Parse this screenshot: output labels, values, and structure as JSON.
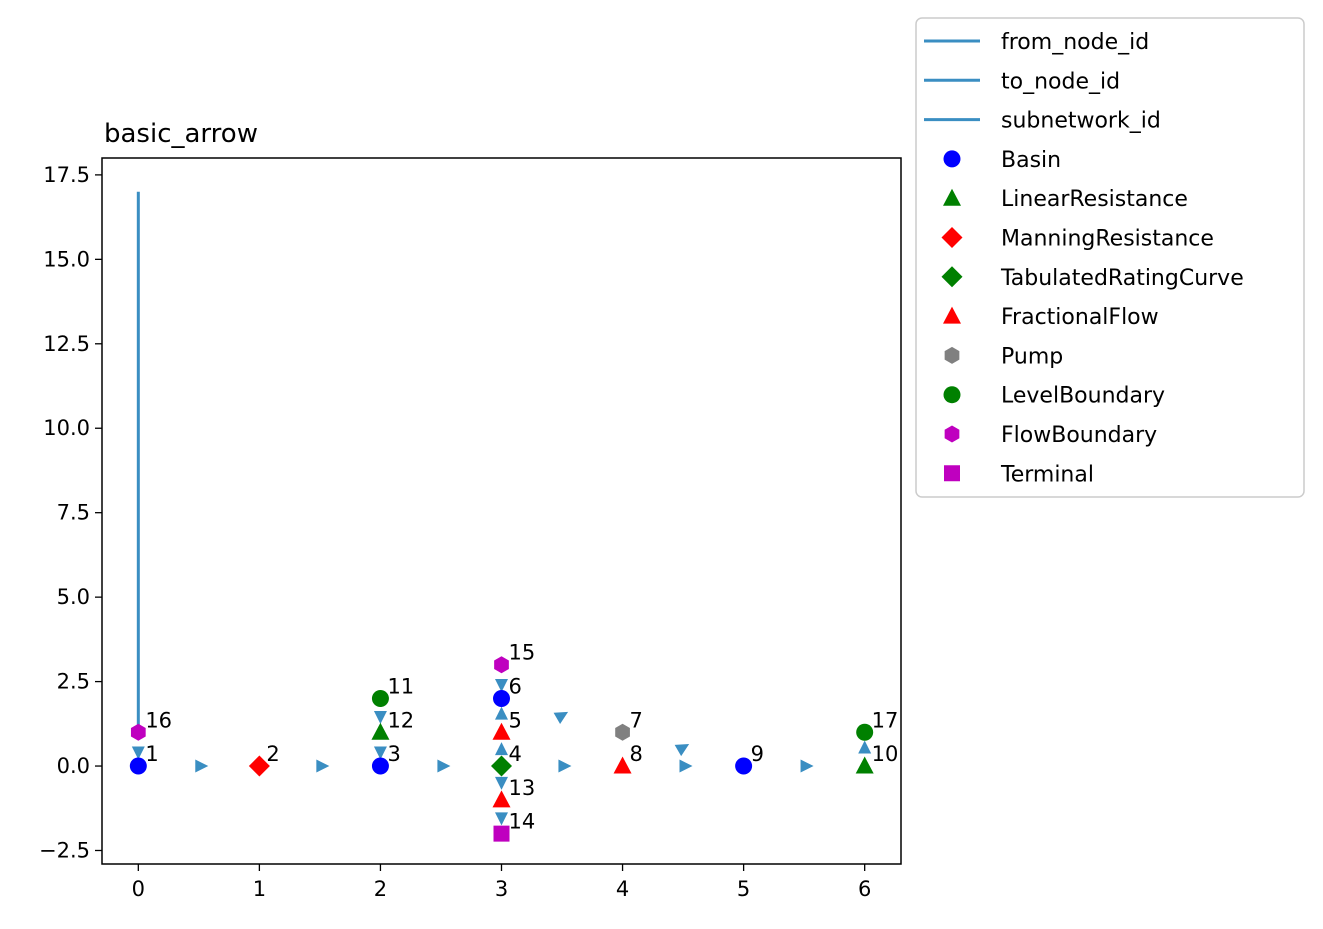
{
  "chart_data": {
    "type": "scatter",
    "title": "basic_arrow",
    "xlabel": "",
    "ylabel": "",
    "xlim": [
      -0.3,
      6.3
    ],
    "ylim": [
      -2.9,
      18.0
    ],
    "x_ticks": [
      0,
      1,
      2,
      3,
      4,
      5,
      6
    ],
    "x_tick_labels": [
      "0",
      "1",
      "2",
      "3",
      "4",
      "5",
      "6"
    ],
    "y_ticks": [
      -2.5,
      0.0,
      2.5,
      5.0,
      7.5,
      10.0,
      12.5,
      15.0,
      17.5
    ],
    "y_tick_labels": [
      "−2.5",
      "0.0",
      "2.5",
      "5.0",
      "7.5",
      "10.0",
      "12.5",
      "15.0",
      "17.5"
    ],
    "grid": false,
    "legend_position": "outside top-right",
    "edge_color": "#3a8ec2",
    "legend": [
      {
        "label": "from_node_id",
        "kind": "line",
        "color": "#3a8ec2"
      },
      {
        "label": "to_node_id",
        "kind": "line",
        "color": "#3a8ec2"
      },
      {
        "label": "subnetwork_id",
        "kind": "line",
        "color": "#3a8ec2"
      },
      {
        "label": "Basin",
        "kind": "marker",
        "shape": "circle",
        "color": "#0000ff"
      },
      {
        "label": "LinearResistance",
        "kind": "marker",
        "shape": "triangle",
        "color": "#008000"
      },
      {
        "label": "ManningResistance",
        "kind": "marker",
        "shape": "diamond",
        "color": "#ff0000"
      },
      {
        "label": "TabulatedRatingCurve",
        "kind": "marker",
        "shape": "diamond",
        "color": "#008000"
      },
      {
        "label": "FractionalFlow",
        "kind": "marker",
        "shape": "triangle",
        "color": "#ff0000"
      },
      {
        "label": "Pump",
        "kind": "marker",
        "shape": "hexagon",
        "color": "#808080"
      },
      {
        "label": "LevelBoundary",
        "kind": "marker",
        "shape": "circle",
        "color": "#008000"
      },
      {
        "label": "FlowBoundary",
        "kind": "marker",
        "shape": "hexagon",
        "color": "#bf00bf"
      },
      {
        "label": "Terminal",
        "kind": "marker",
        "shape": "square",
        "color": "#bf00bf"
      }
    ],
    "edges": [
      {
        "x": [
          0,
          0
        ],
        "y": [
          1,
          17
        ]
      }
    ],
    "arrows": [
      {
        "x": 0,
        "y": 0.4,
        "dir": "down"
      },
      {
        "x": 0.52,
        "y": 0,
        "dir": "right"
      },
      {
        "x": 1.52,
        "y": 0,
        "dir": "right"
      },
      {
        "x": 2,
        "y": 0.4,
        "dir": "down"
      },
      {
        "x": 2,
        "y": 1.45,
        "dir": "down"
      },
      {
        "x": 2.52,
        "y": 0,
        "dir": "right"
      },
      {
        "x": 3,
        "y": 0.5,
        "dir": "up"
      },
      {
        "x": 3,
        "y": 1.55,
        "dir": "up"
      },
      {
        "x": 3,
        "y": 2.4,
        "dir": "down"
      },
      {
        "x": 3,
        "y": -0.5,
        "dir": "down"
      },
      {
        "x": 3,
        "y": -1.55,
        "dir": "down"
      },
      {
        "x": 3.52,
        "y": 0,
        "dir": "right"
      },
      {
        "x": 3.5,
        "y": 1.5,
        "dir": "upright"
      },
      {
        "x": 4.52,
        "y": 0,
        "dir": "right"
      },
      {
        "x": 4.5,
        "y": 0.55,
        "dir": "upright"
      },
      {
        "x": 5.52,
        "y": 0,
        "dir": "right"
      },
      {
        "x": 6,
        "y": 0.55,
        "dir": "up"
      }
    ],
    "nodes": [
      {
        "id": "1",
        "x": 0,
        "y": 0,
        "type": "Basin"
      },
      {
        "id": "2",
        "x": 1,
        "y": 0,
        "type": "ManningResistance"
      },
      {
        "id": "3",
        "x": 2,
        "y": 0,
        "type": "Basin"
      },
      {
        "id": "4",
        "x": 3,
        "y": 0,
        "type": "TabulatedRatingCurve"
      },
      {
        "id": "5",
        "x": 3,
        "y": 1,
        "type": "FractionalFlow"
      },
      {
        "id": "6",
        "x": 3,
        "y": 2,
        "type": "Basin"
      },
      {
        "id": "7",
        "x": 4,
        "y": 1,
        "type": "Pump"
      },
      {
        "id": "8",
        "x": 4,
        "y": 0,
        "type": "FractionalFlow"
      },
      {
        "id": "9",
        "x": 5,
        "y": 0,
        "type": "Basin"
      },
      {
        "id": "10",
        "x": 6,
        "y": 0,
        "type": "LinearResistance"
      },
      {
        "id": "11",
        "x": 2,
        "y": 2,
        "type": "LevelBoundary"
      },
      {
        "id": "12",
        "x": 2,
        "y": 1,
        "type": "LinearResistance"
      },
      {
        "id": "13",
        "x": 3,
        "y": -1,
        "type": "FractionalFlow"
      },
      {
        "id": "14",
        "x": 3,
        "y": -2,
        "type": "Terminal"
      },
      {
        "id": "15",
        "x": 3,
        "y": 3,
        "type": "FlowBoundary"
      },
      {
        "id": "16",
        "x": 0,
        "y": 1,
        "type": "FlowBoundary"
      },
      {
        "id": "17",
        "x": 6,
        "y": 1,
        "type": "LevelBoundary"
      }
    ]
  }
}
